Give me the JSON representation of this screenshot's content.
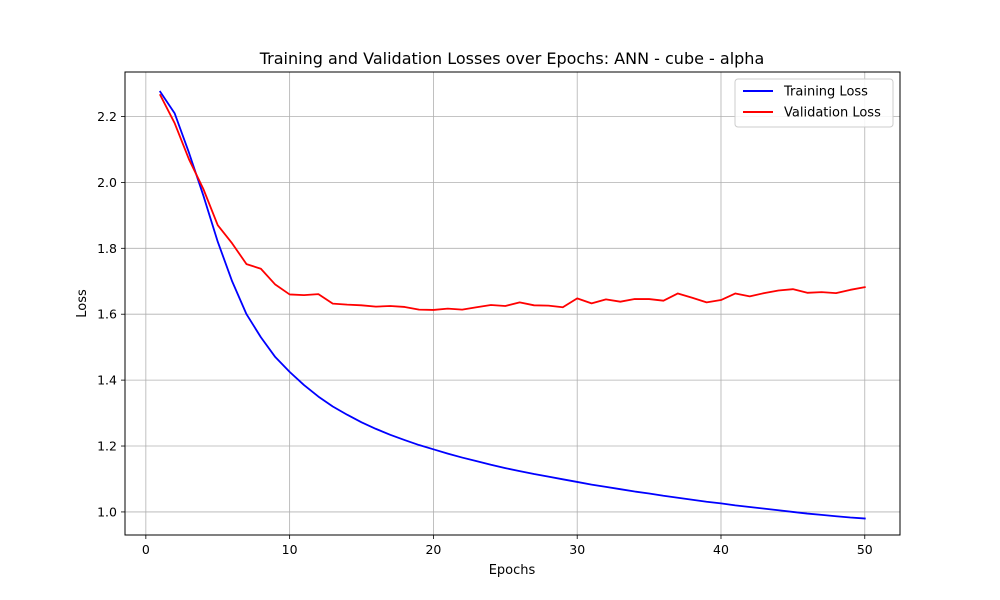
{
  "chart_data": {
    "type": "line",
    "title": "Training and Validation Losses over Epochs: ANN - cube - alpha",
    "xlabel": "Epochs",
    "ylabel": "Loss",
    "xlim": [
      -1.45,
      52.45
    ],
    "ylim": [
      0.93,
      2.335
    ],
    "xticks": [
      0,
      10,
      20,
      30,
      40,
      50
    ],
    "yticks": [
      1.0,
      1.2,
      1.4,
      1.6,
      1.8,
      2.0,
      2.2
    ],
    "ytick_labels": [
      "1.0",
      "1.2",
      "1.4",
      "1.6",
      "1.8",
      "2.0",
      "2.2"
    ],
    "grid": true,
    "legend_position": "top-right",
    "x": [
      1,
      2,
      3,
      4,
      5,
      6,
      7,
      8,
      9,
      10,
      11,
      12,
      13,
      14,
      15,
      16,
      17,
      18,
      19,
      20,
      21,
      22,
      23,
      24,
      25,
      26,
      27,
      28,
      29,
      30,
      31,
      32,
      33,
      34,
      35,
      36,
      37,
      38,
      39,
      40,
      41,
      42,
      43,
      44,
      45,
      46,
      47,
      48,
      49,
      50
    ],
    "series": [
      {
        "name": "Training Loss",
        "color": "#0000ff",
        "values": [
          2.275,
          2.21,
          2.09,
          1.96,
          1.82,
          1.7,
          1.6,
          1.53,
          1.47,
          1.425,
          1.385,
          1.35,
          1.32,
          1.295,
          1.272,
          1.252,
          1.234,
          1.218,
          1.203,
          1.19,
          1.177,
          1.165,
          1.154,
          1.143,
          1.133,
          1.124,
          1.115,
          1.107,
          1.099,
          1.091,
          1.083,
          1.076,
          1.069,
          1.062,
          1.056,
          1.049,
          1.043,
          1.037,
          1.031,
          1.026,
          1.02,
          1.015,
          1.01,
          1.005,
          1.0,
          0.995,
          0.991,
          0.987,
          0.983,
          0.98
        ]
      },
      {
        "name": "Validation Loss",
        "color": "#ff0000",
        "values": [
          2.265,
          2.18,
          2.07,
          1.98,
          1.87,
          1.815,
          1.752,
          1.738,
          1.69,
          1.66,
          1.658,
          1.661,
          1.632,
          1.629,
          1.627,
          1.623,
          1.625,
          1.622,
          1.614,
          1.613,
          1.617,
          1.614,
          1.621,
          1.628,
          1.625,
          1.636,
          1.627,
          1.626,
          1.621,
          1.648,
          1.633,
          1.645,
          1.638,
          1.646,
          1.646,
          1.641,
          1.663,
          1.65,
          1.636,
          1.643,
          1.663,
          1.654,
          1.664,
          1.672,
          1.676,
          1.665,
          1.667,
          1.664,
          1.674,
          1.682
        ]
      }
    ]
  }
}
